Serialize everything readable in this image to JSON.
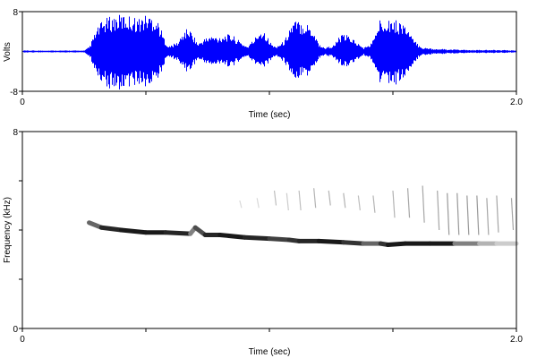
{
  "chart_data": [
    {
      "type": "line",
      "title": "",
      "xlabel": "Time (sec)",
      "ylabel": "Volts",
      "xlim": [
        0,
        2.0
      ],
      "ylim": [
        -8,
        8
      ],
      "x_tick_labels": [
        "0",
        "2.0"
      ],
      "y_tick_labels": [
        "8",
        "-8"
      ],
      "x_minor_ticks": [
        0.5,
        1.0,
        1.5
      ],
      "grid": false,
      "line_color": "#0000ff",
      "series": [
        {
          "kind": "amplitude_envelope",
          "x": [
            0.0,
            0.25,
            0.27,
            0.29,
            0.31,
            0.33,
            0.35,
            0.38,
            0.41,
            0.44,
            0.47,
            0.5,
            0.53,
            0.55,
            0.57,
            0.59,
            0.61,
            0.63,
            0.65,
            0.67,
            0.69,
            0.71,
            0.73,
            0.76,
            0.79,
            0.82,
            0.85,
            0.88,
            0.91,
            0.94,
            0.96,
            0.98,
            1.0,
            1.02,
            1.04,
            1.06,
            1.08,
            1.1,
            1.12,
            1.14,
            1.16,
            1.18,
            1.2,
            1.22,
            1.24,
            1.26,
            1.28,
            1.3,
            1.32,
            1.34,
            1.36,
            1.38,
            1.4,
            1.42,
            1.44,
            1.46,
            1.48,
            1.5,
            1.52,
            1.54,
            1.56,
            1.58,
            1.6,
            1.62,
            1.64,
            1.66,
            1.68,
            1.7,
            1.72,
            1.76,
            1.8,
            1.85,
            1.9,
            1.95,
            2.0
          ],
          "y_max": [
            0.2,
            0.2,
            1.0,
            3.5,
            5.5,
            6.5,
            7.0,
            7.3,
            7.5,
            7.2,
            6.8,
            7.5,
            7.3,
            6.0,
            3.0,
            1.0,
            1.5,
            2.0,
            4.0,
            4.8,
            3.5,
            1.5,
            2.5,
            3.2,
            3.0,
            3.5,
            3.3,
            2.0,
            1.0,
            2.8,
            4.5,
            4.2,
            2.0,
            1.0,
            1.5,
            2.2,
            5.0,
            6.3,
            6.2,
            6.0,
            5.5,
            4.0,
            1.5,
            0.8,
            1.0,
            1.3,
            3.0,
            3.5,
            3.2,
            2.5,
            1.5,
            0.8,
            1.2,
            2.5,
            6.0,
            7.2,
            7.0,
            6.5,
            6.2,
            6.0,
            4.5,
            2.5,
            1.5,
            0.8,
            0.7,
            0.6,
            0.5,
            0.5,
            0.4,
            0.4,
            0.3,
            0.3,
            0.3,
            0.3,
            0.2
          ],
          "y_min": [
            -0.2,
            -0.2,
            -1.0,
            -3.5,
            -5.5,
            -6.5,
            -7.5,
            -7.8,
            -7.5,
            -7.2,
            -6.8,
            -7.3,
            -7.0,
            -5.5,
            -3.0,
            -1.0,
            -1.5,
            -2.0,
            -3.5,
            -4.3,
            -3.2,
            -1.5,
            -2.2,
            -2.8,
            -2.8,
            -3.0,
            -3.0,
            -1.8,
            -1.0,
            -2.5,
            -3.5,
            -3.5,
            -2.0,
            -1.0,
            -1.5,
            -2.2,
            -4.5,
            -5.5,
            -5.6,
            -5.5,
            -5.0,
            -3.5,
            -1.5,
            -0.8,
            -1.0,
            -1.3,
            -2.5,
            -3.0,
            -3.0,
            -2.3,
            -1.5,
            -0.8,
            -1.2,
            -2.5,
            -6.0,
            -7.0,
            -7.2,
            -7.0,
            -6.5,
            -6.0,
            -4.5,
            -2.5,
            -1.5,
            -0.8,
            -0.7,
            -0.6,
            -0.5,
            -0.5,
            -0.4,
            -0.4,
            -0.3,
            -0.3,
            -0.3,
            -0.3,
            -0.2
          ]
        }
      ]
    },
    {
      "type": "heatmap",
      "title": "",
      "xlabel": "Time (sec)",
      "ylabel": "Frequency (kHz)",
      "xlim": [
        0,
        2.0
      ],
      "ylim": [
        0,
        8
      ],
      "x_tick_labels": [
        "0",
        "2.0"
      ],
      "y_tick_labels": [
        "8",
        "0"
      ],
      "x_minor_ticks": [
        0.5,
        1.0,
        1.5
      ],
      "y_minor_ticks": [
        2,
        4,
        6
      ],
      "grid": false,
      "colormap": "grayscale (white = low energy, black = high energy)",
      "series": [
        {
          "name": "",
          "kind": "fundamental_band",
          "x": [
            0.27,
            0.32,
            0.4,
            0.5,
            0.58,
            0.68,
            0.7,
            0.74,
            0.8,
            0.9,
            1.0,
            1.08,
            1.12,
            1.2,
            1.3,
            1.38,
            1.45,
            1.48,
            1.55,
            1.65,
            1.75,
            1.85,
            1.92,
            2.0
          ],
          "y": [
            4.3,
            4.1,
            4.0,
            3.9,
            3.9,
            3.85,
            4.1,
            3.8,
            3.8,
            3.7,
            3.65,
            3.6,
            3.55,
            3.55,
            3.5,
            3.45,
            3.45,
            3.4,
            3.45,
            3.45,
            3.45,
            3.45,
            3.45,
            3.45
          ],
          "intensity": [
            0.6,
            0.85,
            0.9,
            0.9,
            0.85,
            0.5,
            0.7,
            0.85,
            0.9,
            0.85,
            0.75,
            0.8,
            0.85,
            0.9,
            0.8,
            0.6,
            0.8,
            0.9,
            0.9,
            0.9,
            0.5,
            0.3,
            0.2,
            0.2
          ]
        },
        {
          "name": "",
          "kind": "harmonic_streaks",
          "x": [
            0.88,
            0.95,
            1.02,
            1.07,
            1.12,
            1.18,
            1.24,
            1.3,
            1.36,
            1.42,
            1.5,
            1.56,
            1.62,
            1.68,
            1.72,
            1.76,
            1.8,
            1.84,
            1.88,
            1.92,
            1.98
          ],
          "y_low": [
            4.9,
            4.9,
            5.0,
            4.8,
            4.8,
            4.9,
            5.0,
            4.9,
            4.8,
            4.7,
            4.5,
            4.5,
            4.3,
            4.0,
            3.8,
            3.8,
            3.8,
            3.8,
            3.8,
            3.9,
            4.0
          ],
          "y_high": [
            5.2,
            5.3,
            5.6,
            5.5,
            5.6,
            5.7,
            5.6,
            5.5,
            5.4,
            5.4,
            5.6,
            5.7,
            5.8,
            5.6,
            5.5,
            5.5,
            5.4,
            5.4,
            5.3,
            5.4,
            5.3
          ],
          "intensity": [
            0.15,
            0.15,
            0.25,
            0.2,
            0.25,
            0.3,
            0.3,
            0.3,
            0.25,
            0.3,
            0.3,
            0.35,
            0.35,
            0.35,
            0.4,
            0.4,
            0.4,
            0.4,
            0.35,
            0.35,
            0.35
          ]
        }
      ]
    }
  ]
}
